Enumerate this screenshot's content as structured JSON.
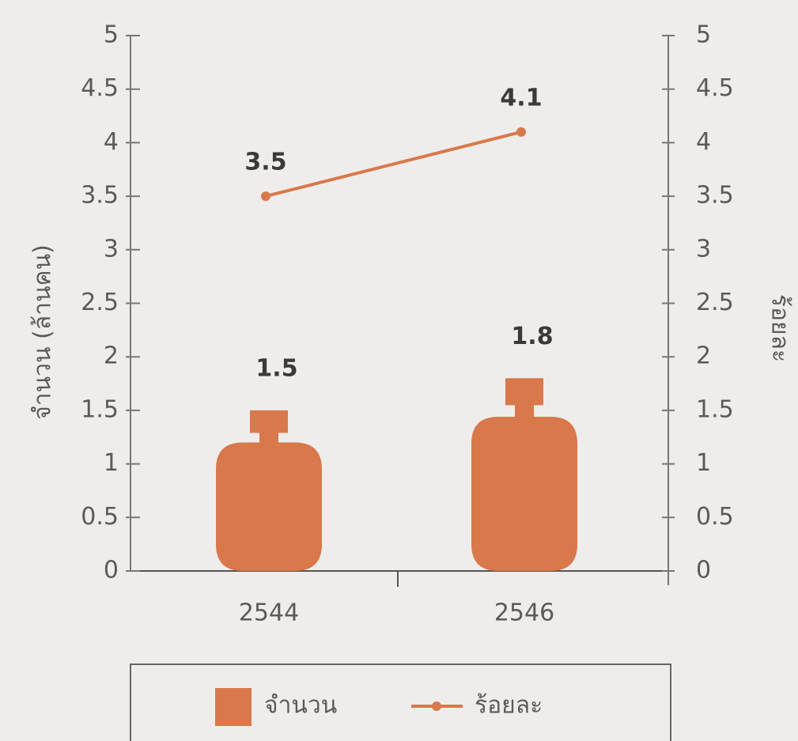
{
  "chart_data": {
    "type": "bar_line",
    "categories": [
      "2544",
      "2546"
    ],
    "series": [
      {
        "name": "จำนวน",
        "type": "bar",
        "color": "#d9784a",
        "values": [
          1.5,
          1.8
        ]
      },
      {
        "name": "ร้อยละ",
        "type": "line",
        "axis": "y2",
        "color": "#d9784a",
        "values": [
          3.5,
          4.1
        ]
      }
    ],
    "y_label": "จำนวน (ล้านคน)",
    "y2_label": "ร้อยละ",
    "ylim": [
      0,
      5
    ],
    "yticks": [
      0,
      0.5,
      1,
      1.5,
      2,
      2.5,
      3,
      3.5,
      4,
      4.5,
      5
    ],
    "y2lim": [
      0,
      5
    ],
    "y2ticks": [
      0,
      0.5,
      1,
      1.5,
      2,
      2.5,
      3,
      3.5,
      4,
      4.5,
      5
    ],
    "legend": "bottom"
  }
}
